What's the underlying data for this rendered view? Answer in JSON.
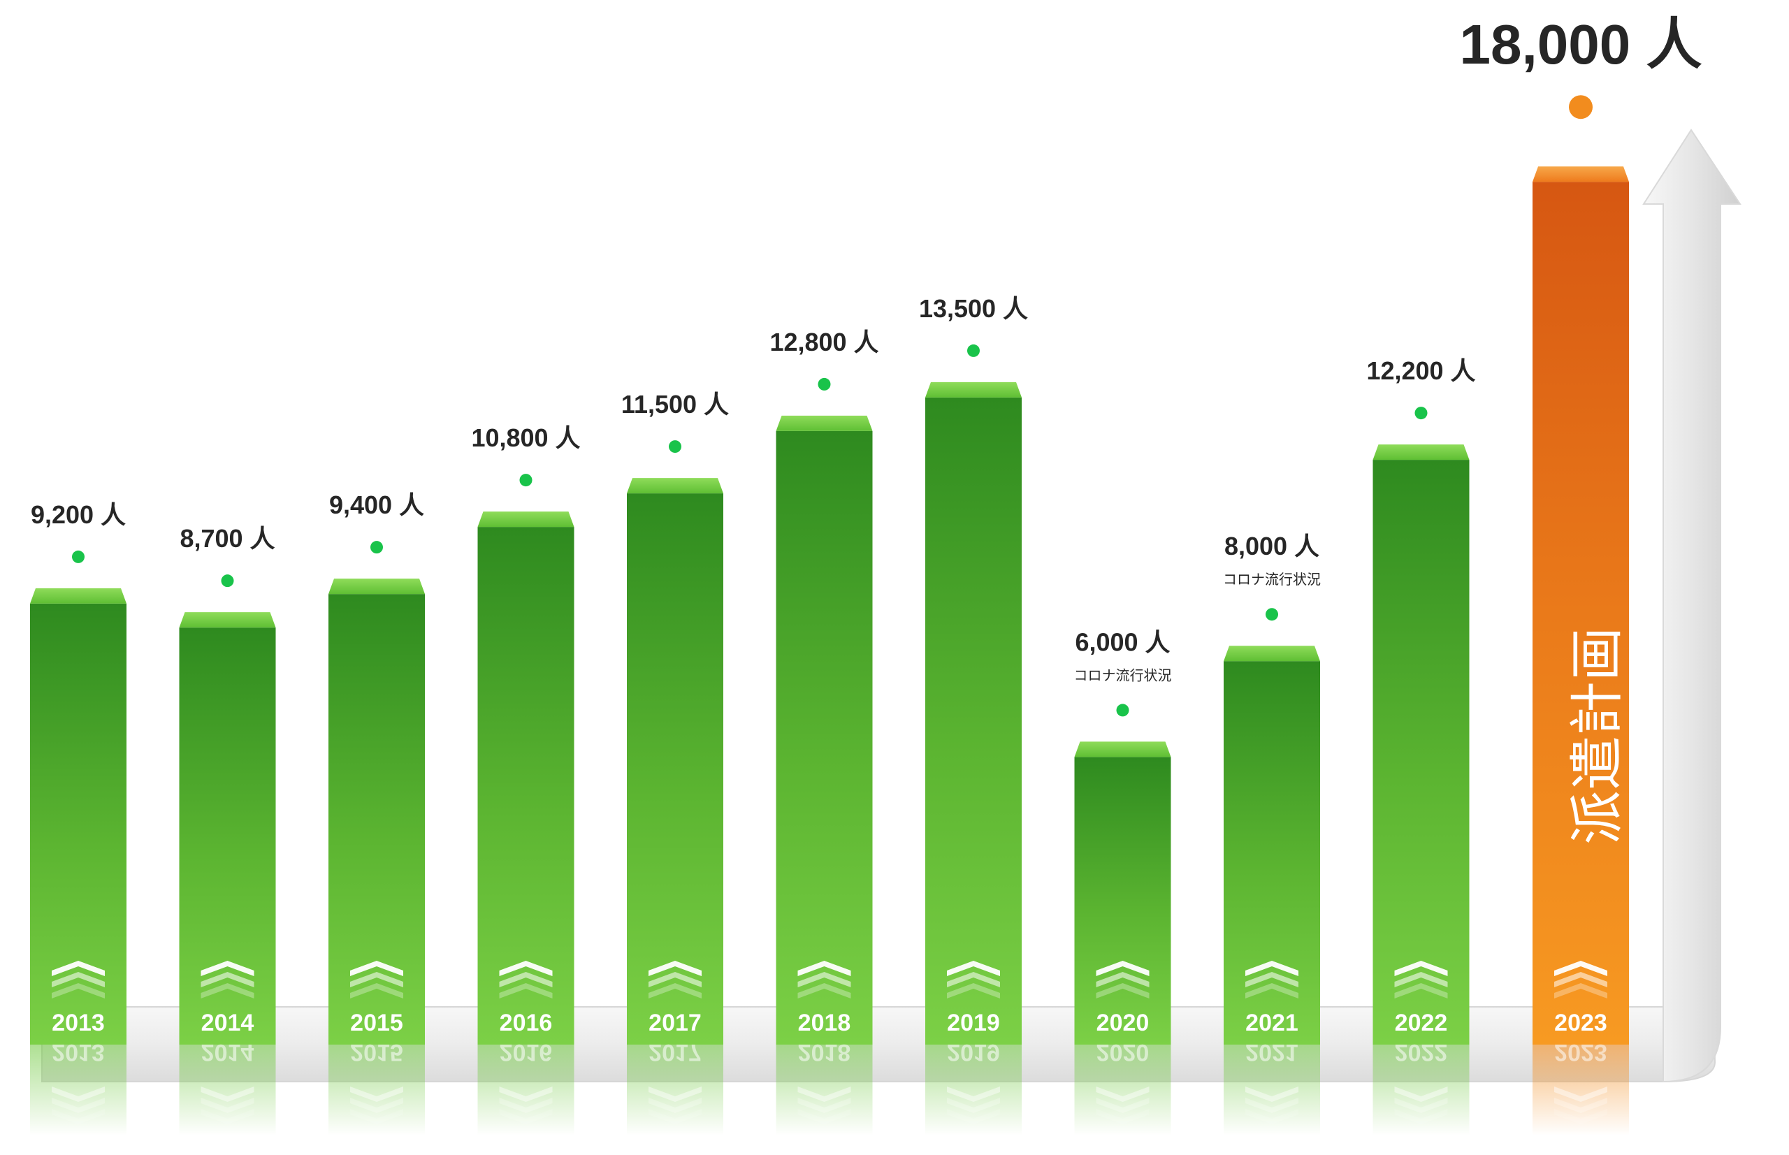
{
  "chart_data": {
    "type": "bar",
    "categories": [
      "2013",
      "2014",
      "2015",
      "2016",
      "2017",
      "2018",
      "2019",
      "2020",
      "2021",
      "2022",
      "2023"
    ],
    "values": [
      9200,
      8700,
      9400,
      10800,
      11500,
      12800,
      13500,
      6000,
      8000,
      12200,
      18000
    ],
    "value_labels": [
      "9,200 人",
      "8,700 人",
      "9,400 人",
      "10,800 人",
      "11,500 人",
      "12,800 人",
      "13,500 人",
      "6,000 人",
      "8,000 人",
      "12,200 人",
      "18,000 人"
    ],
    "notes": [
      "",
      "",
      "",
      "",
      "",
      "",
      "",
      "コロナ流行状況",
      "コロナ流行状況",
      "",
      ""
    ],
    "highlight_index": 10,
    "highlight_title": "派遣計画",
    "colors": {
      "bar": "#5cb531",
      "bar_dark": "#2e8a1f",
      "bar_light": "#7cd046",
      "highlight": "#f28c1e",
      "highlight_dark": "#d65712",
      "highlight_text": "#f5921e",
      "dot": "#19c34a",
      "dot_highlight": "#f28c1e"
    }
  }
}
